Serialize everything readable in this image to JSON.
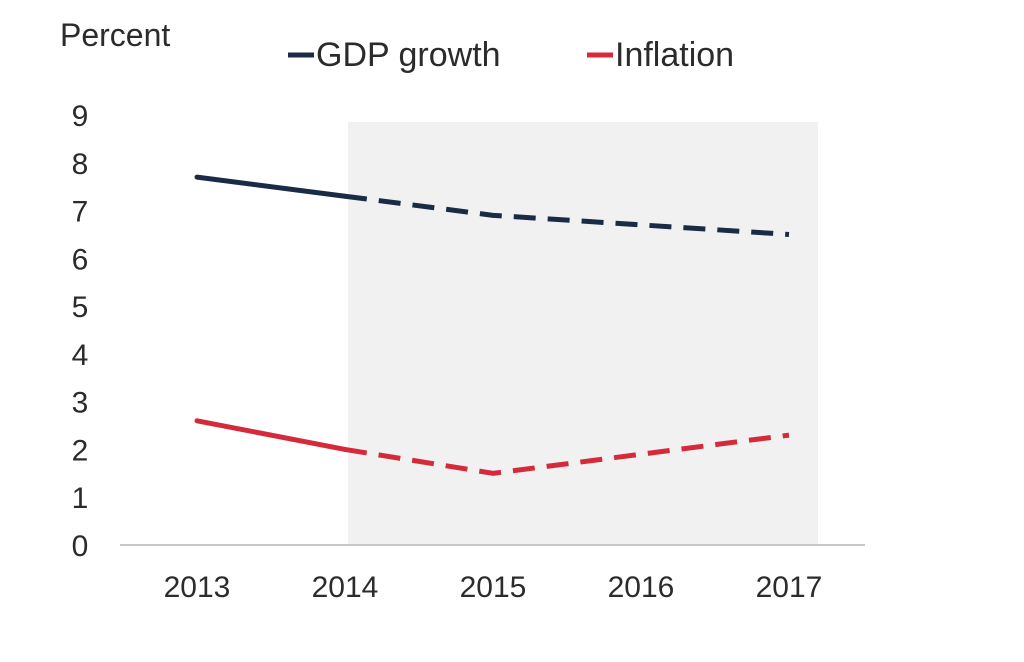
{
  "chart_data": {
    "type": "line",
    "ylabel": "Percent",
    "ylim": [
      0,
      9
    ],
    "yticks": [
      0,
      1,
      2,
      3,
      4,
      5,
      6,
      7,
      8,
      9
    ],
    "categories": [
      "2013",
      "2014",
      "2015",
      "2016",
      "2017"
    ],
    "forecast_from": "2014",
    "forecast_shaded_range": [
      "2014",
      "2017"
    ],
    "legend_position": "top",
    "grid": false,
    "series": [
      {
        "name": "GDP growth",
        "color": "#1a2b45",
        "values": [
          7.7,
          7.3,
          6.9,
          6.7,
          6.5
        ]
      },
      {
        "name": "Inflation",
        "color": "#d42a3a",
        "values": [
          2.6,
          2.0,
          1.5,
          1.9,
          2.3
        ]
      }
    ]
  }
}
